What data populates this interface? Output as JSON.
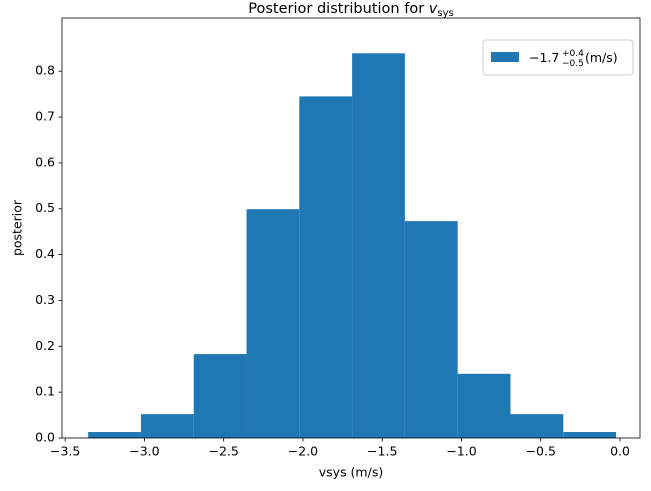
{
  "chart_data": {
    "type": "histogram",
    "title": {
      "text": "Posterior distribution for",
      "symbol": "v",
      "subscript": "sys"
    },
    "xlabel": "vsys (m/s)",
    "ylabel": "posterior",
    "bins": [
      -3.355,
      -3.022,
      -2.689,
      -2.356,
      -2.023,
      -1.69,
      -1.357,
      -1.024,
      -0.691,
      -0.358,
      -0.025
    ],
    "values": [
      0.013,
      0.052,
      0.183,
      0.499,
      0.745,
      0.839,
      0.473,
      0.14,
      0.052,
      0.013
    ],
    "color": "#1f77b4",
    "legend": {
      "label": "−1.7",
      "upper": "+0.4",
      "lower": "−0.5",
      "unit": "(m/s)",
      "loc": "upper right"
    },
    "xlim": [
      -3.52,
      0.126
    ],
    "xticks": [
      {
        "value": -3.5,
        "label": "−3.5"
      },
      {
        "value": -3.0,
        "label": "−3.0"
      },
      {
        "value": -2.5,
        "label": "−2.5"
      },
      {
        "value": -2.0,
        "label": "−2.0"
      },
      {
        "value": -1.5,
        "label": "−1.5"
      },
      {
        "value": -1.0,
        "label": "−1.0"
      },
      {
        "value": -0.5,
        "label": "−0.5"
      },
      {
        "value": 0.0,
        "label": "0.0"
      }
    ],
    "ylim": [
      0,
      0.916
    ],
    "yticks": [
      {
        "value": 0.0,
        "label": "0.0"
      },
      0.1,
      0.2,
      0.3,
      0.4,
      0.5,
      0.6,
      0.7,
      0.8
    ]
  }
}
